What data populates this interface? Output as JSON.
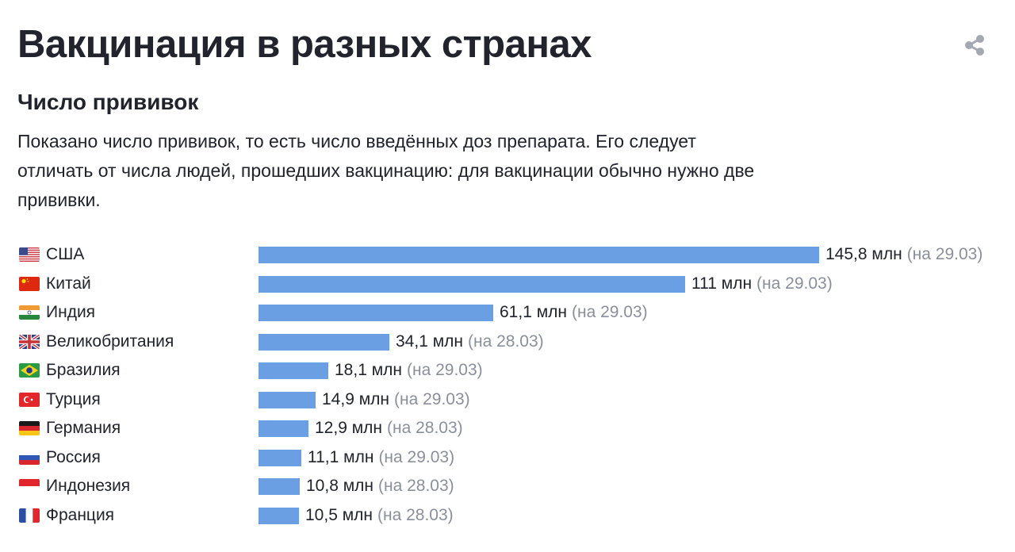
{
  "page": {
    "title": "Вакцинация в разных странах",
    "subtitle": "Число прививок",
    "description": "Показано число прививок, то есть число введённых доз препарата. Его следует отличать от числа людей, прошедших вакцинацию: для вакцинации обычно нужно две прививки.",
    "share_icon": "share-icon"
  },
  "colors": {
    "bar": "#6b9fe4",
    "text": "#21232d",
    "muted": "#8a8f9c"
  },
  "chart_data": {
    "type": "bar",
    "orientation": "horizontal",
    "title": "",
    "xlabel": "",
    "ylabel": "",
    "unit": "млн",
    "categories": [
      "США",
      "Китай",
      "Индия",
      "Великобритания",
      "Бразилия",
      "Турция",
      "Германия",
      "Россия",
      "Индонезия",
      "Франция"
    ],
    "flags": [
      "us",
      "cn",
      "in",
      "gb",
      "br",
      "tr",
      "de",
      "ru",
      "id",
      "fr"
    ],
    "values": [
      145.8,
      111,
      61.1,
      34.1,
      18.1,
      14.9,
      12.9,
      11.1,
      10.8,
      10.5
    ],
    "value_labels": [
      "145,8 млн",
      "111 млн",
      "61,1 млн",
      "34,1 млн",
      "18,1 млн",
      "14,9 млн",
      "12,9 млн",
      "11,1 млн",
      "10,8 млн",
      "10,5 млн"
    ],
    "date_labels": [
      "(на 29.03)",
      "(на 29.03)",
      "(на 29.03)",
      "(на 28.03)",
      "(на 29.03)",
      "(на 29.03)",
      "(на 28.03)",
      "(на 29.03)",
      "(на 28.03)",
      "(на 28.03)"
    ],
    "xlim": [
      0,
      145.8
    ],
    "grid": false,
    "legend": "none"
  }
}
